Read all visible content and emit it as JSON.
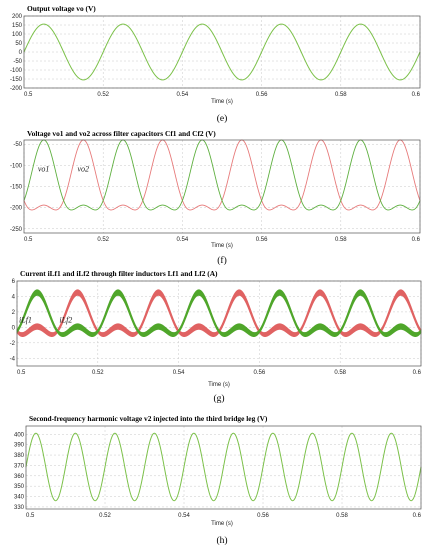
{
  "chart_data": [
    {
      "id": "e",
      "type": "line",
      "title": "Output voltage vo (V)",
      "caption": "(e)",
      "xlabel": "Time (s)",
      "xlim": [
        0.5,
        0.6
      ],
      "ylim": [
        -200,
        200
      ],
      "xticks": [
        "0.5",
        "0.52",
        "0.54",
        "0.56",
        "0.58",
        "0.6"
      ],
      "yticks": [
        "200",
        "150",
        "100",
        "50",
        "0",
        "-50",
        "-100",
        "-150",
        "-200"
      ],
      "grid": true,
      "series": [
        {
          "color": "#7cc14a",
          "width": 1.0,
          "waveform": {
            "kind": "sine",
            "amplitude": 155,
            "offset": 0,
            "frequency_hz": 50,
            "phase_deg": 0
          }
        }
      ]
    },
    {
      "id": "f",
      "type": "line",
      "title": "Voltage vo1 and vo2 across filter capacitors Cf1 and Cf2 (V)",
      "caption": "(f)",
      "xlabel": "Time (s)",
      "xlim": [
        0.5,
        0.6
      ],
      "ylim": [
        -260,
        -40
      ],
      "xticks": [
        "0.5",
        "0.52",
        "0.54",
        "0.56",
        "0.58",
        "0.6"
      ],
      "yticks": [
        "-50",
        "-100",
        "-150",
        "-200",
        "-250"
      ],
      "grid": true,
      "annotations": [
        {
          "text": "vo1",
          "x": 0.5035,
          "y": -115
        },
        {
          "text": "vo2",
          "x": 0.5135,
          "y": -115
        }
      ],
      "series": [
        {
          "color": "#e77b7b",
          "width": 0.9,
          "waveform": {
            "kind": "sine_plus_second",
            "offset": -150,
            "amplitude": 77,
            "second_amplitude": 33,
            "frequency_hz": 50,
            "phase_deg": 180
          }
        },
        {
          "color": "#5fb040",
          "width": 0.9,
          "waveform": {
            "kind": "sine_plus_second",
            "offset": -150,
            "amplitude": 77,
            "second_amplitude": 33,
            "frequency_hz": 50,
            "phase_deg": 0
          }
        }
      ]
    },
    {
      "id": "g",
      "type": "line",
      "title": "Current iLf1 and iLf2 through filter inductors Lf1 and Lf2 (A)",
      "caption": "(g)",
      "xlabel": "Time (s)",
      "xlim": [
        0.5,
        0.6
      ],
      "ylim": [
        -5,
        6
      ],
      "xticks": [
        "0.5",
        "0.52",
        "0.54",
        "0.56",
        "0.58",
        "0.6"
      ],
      "yticks": [
        "6",
        "4",
        "2",
        "0",
        "-2",
        "-4"
      ],
      "grid": true,
      "annotations": [
        {
          "text": "iLf1",
          "x": 0.5005,
          "y": 0.6
        },
        {
          "text": "iLf2",
          "x": 0.5105,
          "y": 0.6
        }
      ],
      "series": [
        {
          "color": "#e06262",
          "width": 0.9,
          "ripple": 0.75,
          "waveform": {
            "kind": "sine_plus_second",
            "offset": 0.9,
            "amplitude": 2.2,
            "second_amplitude": 1.4,
            "frequency_hz": 50,
            "phase_deg": 180
          }
        },
        {
          "color": "#4fa62a",
          "width": 0.9,
          "ripple": 0.75,
          "waveform": {
            "kind": "sine_plus_second",
            "offset": 0.9,
            "amplitude": 2.2,
            "second_amplitude": 1.4,
            "frequency_hz": 50,
            "phase_deg": 0
          }
        }
      ]
    },
    {
      "id": "h",
      "type": "line",
      "title": "Second-frequency harmonic voltage v2 injected into the third bridge leg (V)",
      "caption": "(h)",
      "xlabel": "Time (s)",
      "xlim": [
        0.5,
        0.6
      ],
      "ylim": [
        328,
        408
      ],
      "xticks": [
        "0.5",
        "0.52",
        "0.54",
        "0.56",
        "0.58",
        "0.6"
      ],
      "yticks": [
        "400",
        "390",
        "380",
        "370",
        "360",
        "350",
        "340",
        "330"
      ],
      "grid": true,
      "series": [
        {
          "color": "#7cc14a",
          "width": 1.0,
          "waveform": {
            "kind": "sine",
            "amplitude": 32.5,
            "offset": 368.5,
            "frequency_hz": 100,
            "phase_deg": 0
          }
        }
      ]
    }
  ]
}
